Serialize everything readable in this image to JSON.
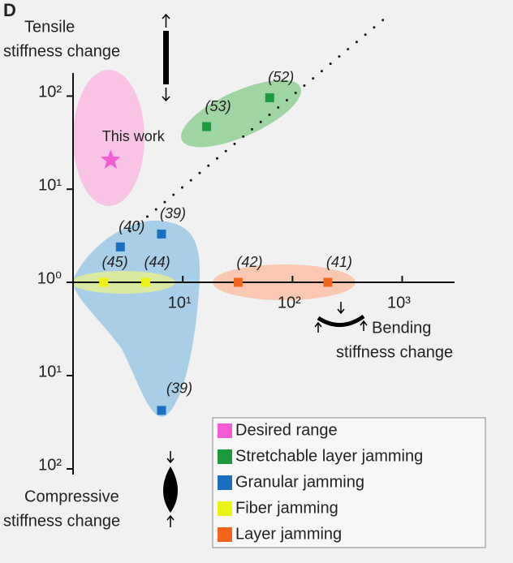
{
  "chart_data": {
    "type": "scatter",
    "panel_label": "D",
    "y_label": [
      "Tensile",
      "stiffness change"
    ],
    "y2_label": [
      "Compressive",
      "stiffness change"
    ],
    "x_label": [
      "Bending",
      "stiffness change"
    ],
    "annotation": "This work",
    "log_x": true,
    "log_y": true,
    "xlim": [
      1,
      3000
    ],
    "ylim": [
      1,
      170
    ],
    "y2lim": [
      1,
      115
    ],
    "xticks": [
      {
        "value": 10,
        "label": "10¹"
      },
      {
        "value": 100,
        "label": "10²"
      },
      {
        "value": 1000,
        "label": "10³"
      }
    ],
    "yticks": [
      {
        "value": 1,
        "label": "10⁰"
      },
      {
        "value": 10,
        "label": "10¹"
      },
      {
        "value": 100,
        "label": "10²"
      }
    ],
    "y2ticks": [
      {
        "value": 10,
        "label": "10¹"
      },
      {
        "value": 100,
        "label": "10²"
      }
    ],
    "legend": "lower right",
    "series": [
      {
        "name": "Desired range",
        "color": "#f55bd3",
        "marker": "star",
        "points": [
          {
            "x": 2.2,
            "y": 20.5
          }
        ]
      },
      {
        "name": "Stretchable layer jamming",
        "color": "#1c9a3c",
        "marker": "square",
        "points": [
          {
            "x": 16.5,
            "y": 47,
            "label": "(53)"
          },
          {
            "x": 62,
            "y": 96,
            "label": "(52)"
          }
        ]
      },
      {
        "name": "Granular jamming",
        "color": "#1a6fc0",
        "marker": "square",
        "points": [
          {
            "x": 2.7,
            "y": 2.4,
            "label": "(40)"
          },
          {
            "x": 6.4,
            "y": 3.3,
            "label": "(39)"
          },
          {
            "x": 6.4,
            "y": 23.6,
            "label": "(39)",
            "axis": "y2"
          }
        ]
      },
      {
        "name": "Fiber jamming",
        "color": "#eaf218",
        "marker": "square",
        "points": [
          {
            "x": 1.9,
            "y": 1,
            "label": "(45)"
          },
          {
            "x": 4.6,
            "y": 1,
            "label": "(44)"
          }
        ]
      },
      {
        "name": "Layer jamming",
        "color": "#f2661b",
        "marker": "square",
        "points": [
          {
            "x": 32,
            "y": 1,
            "label": "(42)"
          },
          {
            "x": 210,
            "y": 1,
            "label": "(41)"
          }
        ]
      }
    ]
  }
}
